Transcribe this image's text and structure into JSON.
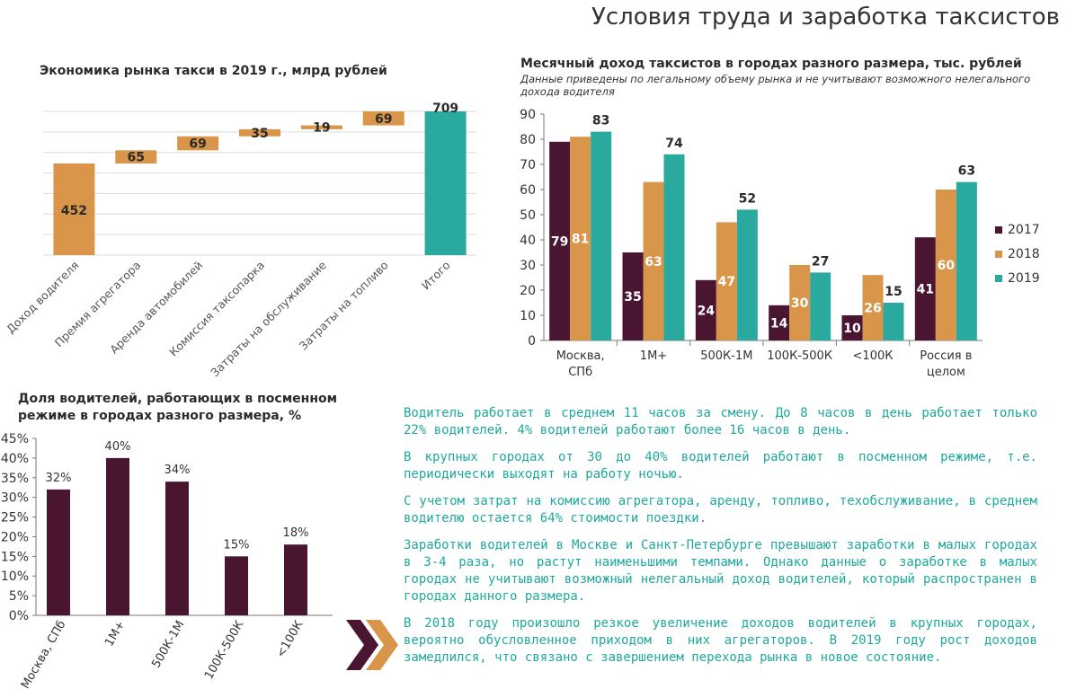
{
  "page": {
    "title": "Условия труда и заработка таксистов"
  },
  "waterfall": {
    "title": "Экономика рынка такси в 2019 г., млрд рублей"
  },
  "income": {
    "title": "Месячный доход таксистов в городах разного размера, тыс. рублей",
    "subtitle": "Данные приведены по легальному объему рынка и не учитывают возможного нелегального дохода водителя"
  },
  "shift": {
    "title_line1": "Доля водителей, работающих в посменном",
    "title_line2": "режиме в городах разного размера, %"
  },
  "paragraphs": [
    "Водитель работает в среднем 11 часов за смену. До 8 часов в день работает только 22% водителей. 4% водителей работают более 16 часов в день.",
    "В крупных городах от 30 до 40% водителей работают в посменном режиме, т.е. периодически выходят на работу ночью.",
    "С учетом затрат на комиссию агрегатора, аренду, топливо, техобслуживание, в среднем водителю остается 64% стоимости поездки.",
    "Заработки водителей в Москве и Санкт-Петербурге превышают заработки в малых городах в 3-4 раза, но растут наименьшими темпами. Однако данные о заработке в малых городах не учитывают возможный нелегальный доход водителей, который распространен в городах данного размера.",
    "В 2018 году произошло резкое увеличение доходов водителей в крупных городах, вероятно обусловленное приходом в них агрегаторов. В 2019 году рост доходов замедлился, что связано с завершением перехода рынка в новое состояние."
  ],
  "colors": {
    "maroon": "#4a1530",
    "orange": "#d9964a",
    "teal": "#2aa99f",
    "text_teal": "#1fa99c",
    "grid": "#d9d9d9"
  },
  "chart_data": [
    {
      "type": "bar",
      "subtype": "waterfall",
      "title": "Экономика рынка такси в 2019 г., млрд рублей",
      "categories": [
        "Доход водителя",
        "Премия агрегатора",
        "Аренда автомобилей",
        "Комиссия таксопарка",
        "Затраты на обслуживание",
        "Затраты на топливо",
        "Итого"
      ],
      "values": [
        452,
        65,
        69,
        35,
        19,
        69,
        709
      ],
      "value_labels": [
        "452",
        "65",
        "69",
        "35",
        "19",
        "69",
        "709"
      ],
      "total_index": 6,
      "ylim": [
        0,
        709
      ],
      "grid": true
    },
    {
      "type": "bar",
      "title": "Месячный доход таксистов в городах разного размера, тыс. рублей",
      "categories": [
        "Москва, СПб",
        "1М+",
        "500К-1М",
        "100К-500К",
        "<100К",
        "Россия в целом"
      ],
      "category_lines": [
        [
          "Москва,",
          "СПб"
        ],
        [
          "1М+"
        ],
        [
          "500К-1М"
        ],
        [
          "100К-500К"
        ],
        [
          "<100К"
        ],
        [
          "Россия в",
          "целом"
        ]
      ],
      "series": [
        {
          "name": "2017",
          "values": [
            79,
            35,
            24,
            14,
            10,
            41
          ]
        },
        {
          "name": "2018",
          "values": [
            81,
            63,
            47,
            30,
            26,
            60
          ]
        },
        {
          "name": "2019",
          "values": [
            83,
            74,
            52,
            27,
            15,
            63
          ]
        }
      ],
      "ylim": [
        0,
        90
      ],
      "yticks": [
        0,
        10,
        20,
        30,
        40,
        50,
        60,
        70,
        80,
        90
      ],
      "legend": "right"
    },
    {
      "type": "bar",
      "title": "Доля водителей, работающих в посменном режиме в городах разного размера, %",
      "categories": [
        "Москва, СПб",
        "1М+",
        "500К-1М",
        "100К-500К",
        "<100К"
      ],
      "values": [
        32,
        40,
        34,
        15,
        18
      ],
      "value_labels": [
        "32%",
        "40%",
        "34%",
        "15%",
        "18%"
      ],
      "ylim": [
        0,
        45
      ],
      "yticks": [
        "0%",
        "5%",
        "10%",
        "15%",
        "20%",
        "25%",
        "30%",
        "35%",
        "40%",
        "45%"
      ]
    }
  ]
}
